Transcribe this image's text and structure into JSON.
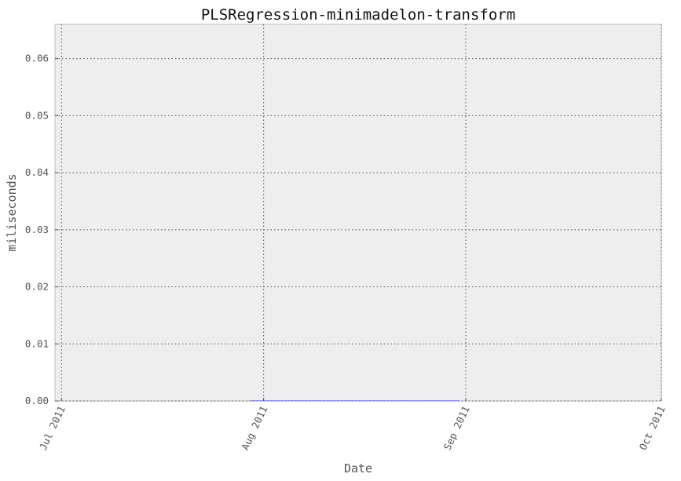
{
  "chart_data": {
    "type": "line",
    "title": "PLSRegression-minimadelon-transform",
    "xlabel": "Date",
    "ylabel": "miliseconds",
    "x_ticks": [
      "2011-07-01",
      "2011-08-01",
      "2011-09-01",
      "2011-10-01"
    ],
    "x_tick_labels": [
      "Jul 2011",
      "Aug 2011",
      "Sep 2011",
      "Oct 2011"
    ],
    "xlim": [
      "2011-06-30",
      "2011-10-01"
    ],
    "y_ticks": [
      0.0,
      0.01,
      0.02,
      0.03,
      0.04,
      0.05,
      0.06
    ],
    "y_tick_labels": [
      "0.00",
      "0.01",
      "0.02",
      "0.03",
      "0.04",
      "0.05",
      "0.06"
    ],
    "ylim": [
      0,
      0.066
    ],
    "grid": true,
    "series": [
      {
        "x": [
          "2011-07-30",
          "2011-08-31"
        ],
        "values": [
          0.0,
          0.0
        ],
        "color": "#8888ff"
      }
    ]
  }
}
